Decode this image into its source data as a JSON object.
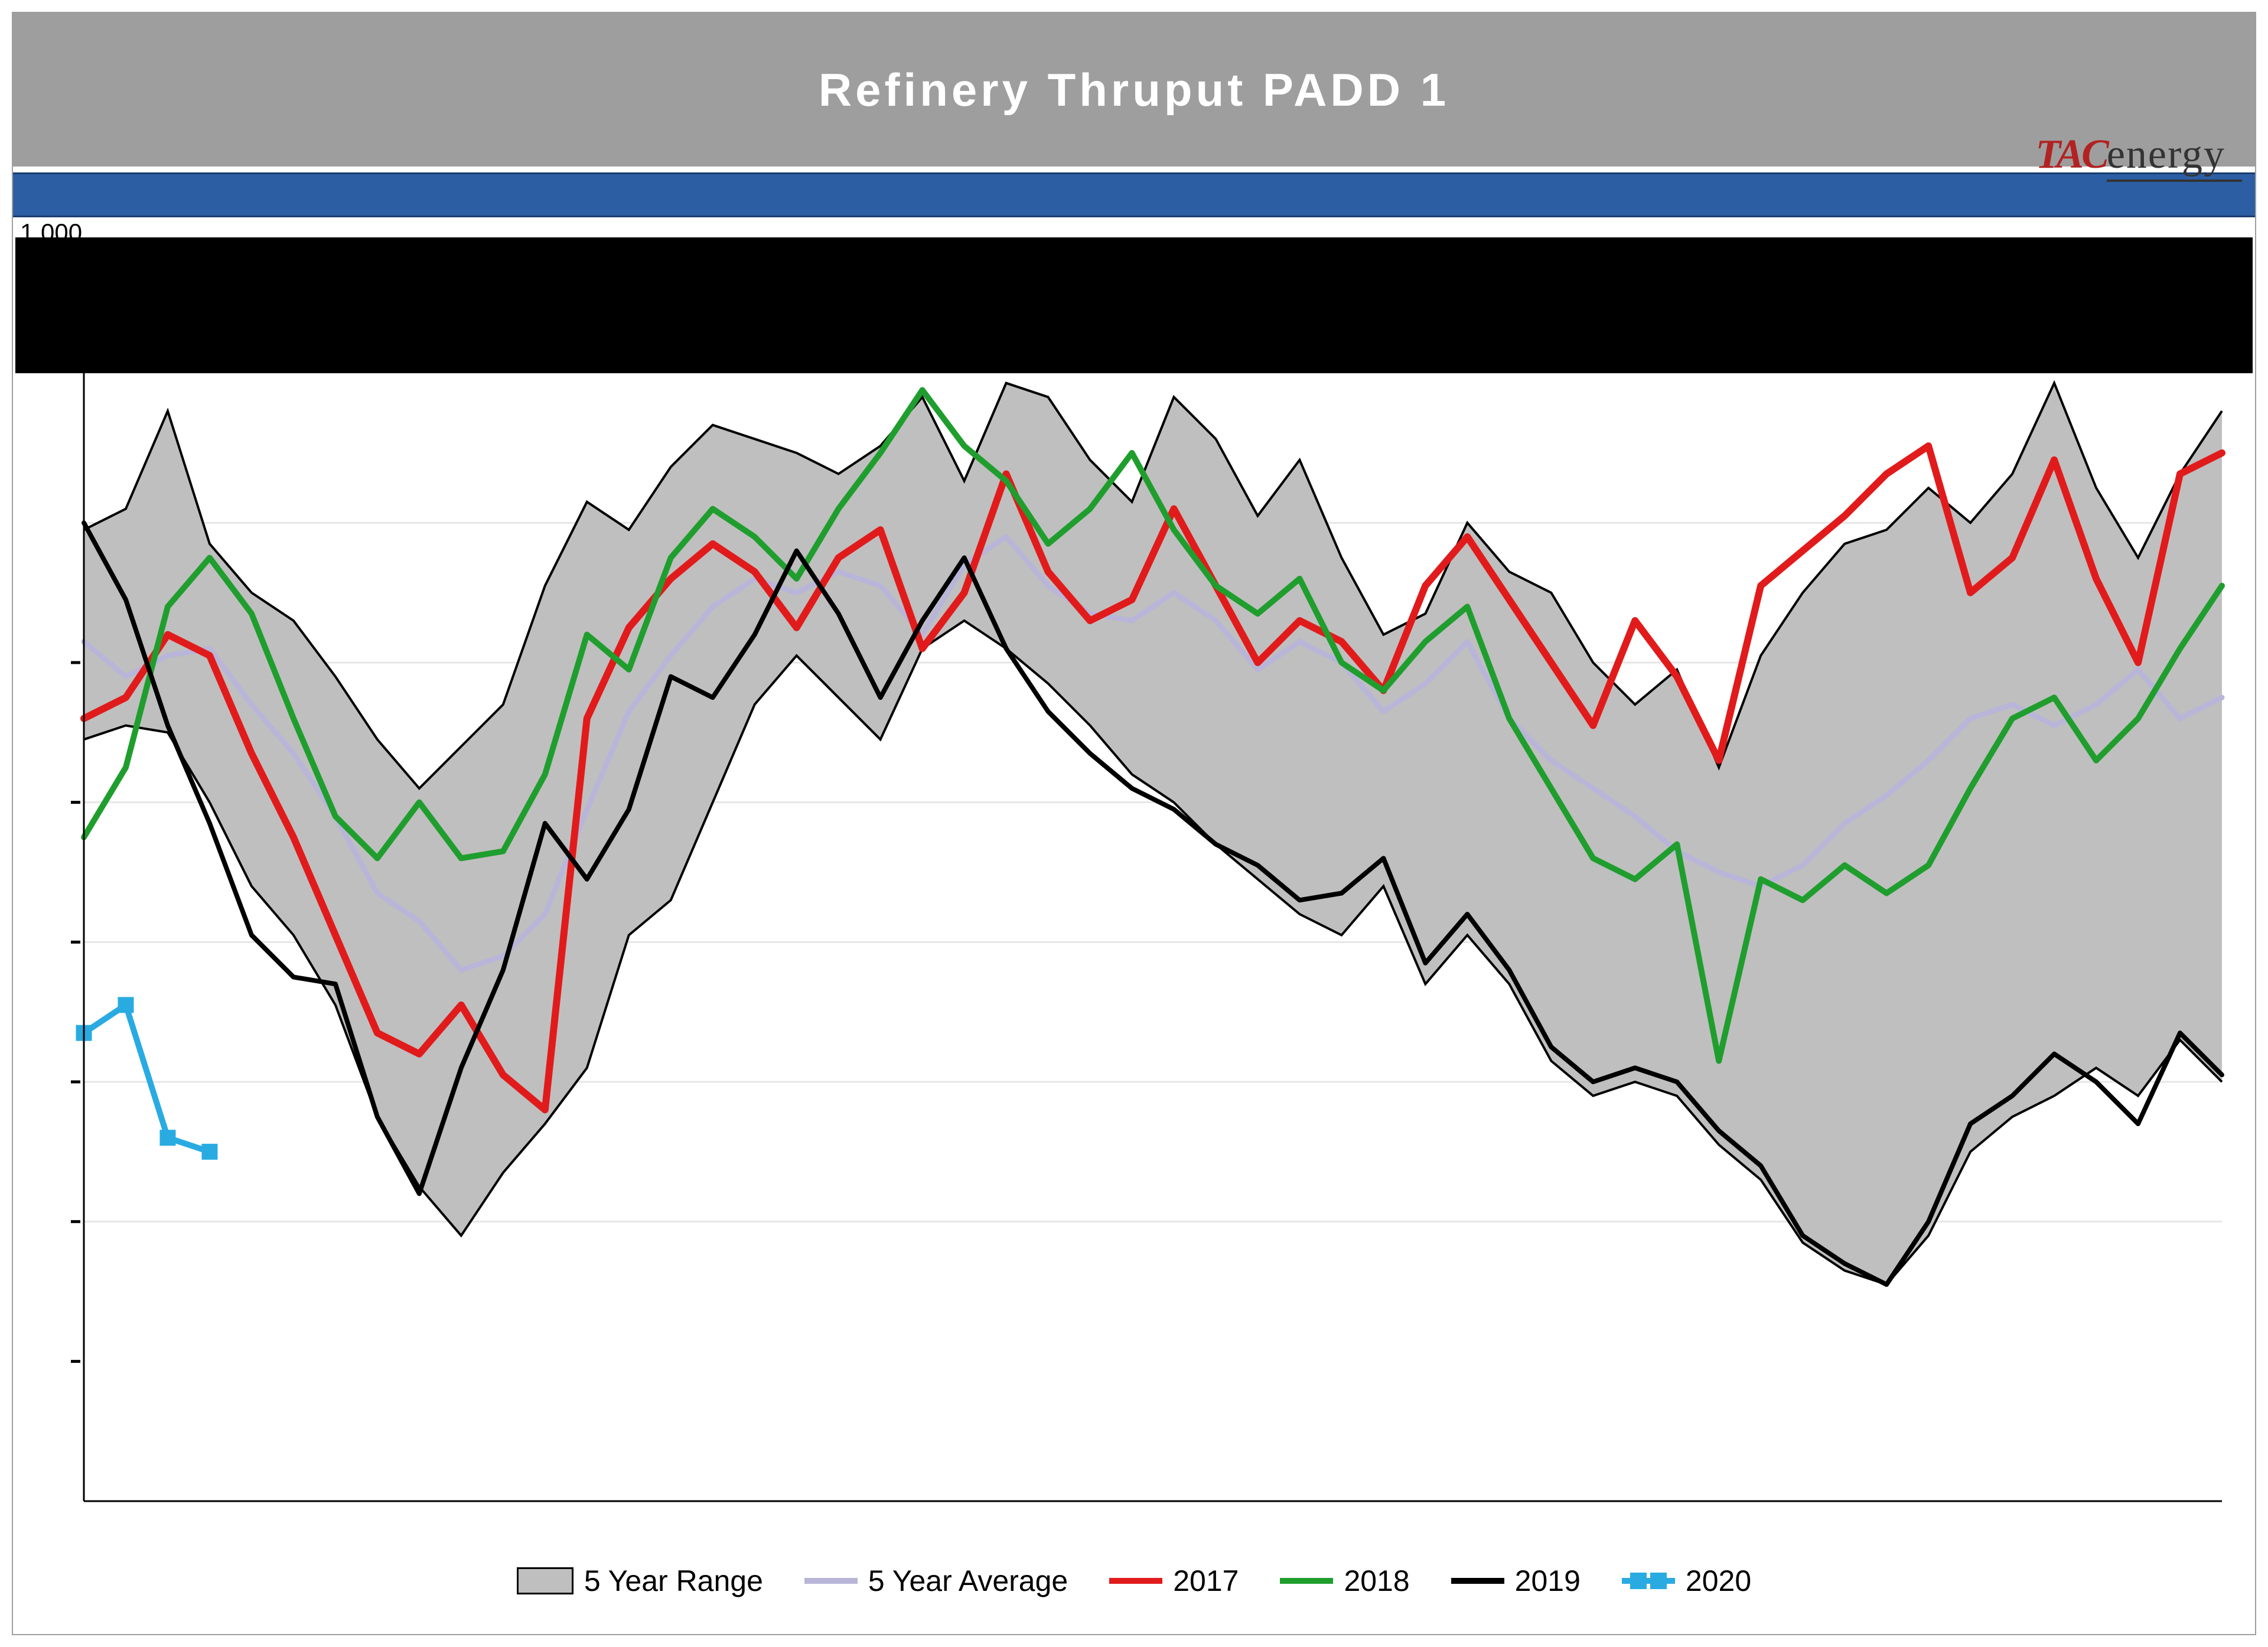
{
  "title": "Refinery Thruput PADD 1",
  "logo": {
    "tac": "TAC",
    "energy": "energy"
  },
  "axis_top_label": "1 000",
  "chart": {
    "type": "line-with-band",
    "x_count": 52,
    "y_domain": [
      500,
      1400
    ],
    "y_gridlines": [
      700,
      800,
      900,
      1000,
      1100,
      1200
    ],
    "y_tick_dash_positions": [
      600,
      700,
      800,
      900,
      1000,
      1100
    ],
    "plot_background": "#ffffff",
    "gridline_color": "#e6e6e6",
    "axis_line_color": "#000000",
    "band": {
      "label": "5 Year Range",
      "fill": "#bfbfbf",
      "stroke": "#000000",
      "stroke_width": 4,
      "upper": [
        1195,
        1210,
        1280,
        1185,
        1150,
        1130,
        1090,
        1045,
        1010,
        1040,
        1070,
        1155,
        1215,
        1195,
        1240,
        1270,
        1260,
        1250,
        1235,
        1255,
        1290,
        1230,
        1300,
        1290,
        1245,
        1215,
        1290,
        1260,
        1205,
        1245,
        1175,
        1120,
        1135,
        1200,
        1165,
        1150,
        1100,
        1070,
        1095,
        1025,
        1105,
        1150,
        1185,
        1195,
        1225,
        1200,
        1235,
        1300,
        1225,
        1175,
        1235,
        1280
      ],
      "lower": [
        1045,
        1055,
        1050,
        1000,
        940,
        905,
        855,
        775,
        725,
        690,
        735,
        770,
        810,
        905,
        930,
        1000,
        1070,
        1105,
        1075,
        1045,
        1110,
        1130,
        1110,
        1085,
        1055,
        1020,
        1000,
        970,
        945,
        920,
        905,
        940,
        870,
        905,
        870,
        815,
        790,
        800,
        790,
        755,
        730,
        685,
        665,
        655,
        690,
        750,
        775,
        790,
        810,
        790,
        830,
        800
      ]
    },
    "series": [
      {
        "id": "avg",
        "label": "5 Year Average",
        "color": "#b8b5d9",
        "width": 9,
        "marker": null,
        "values": [
          1115,
          1090,
          1105,
          1110,
          1070,
          1035,
          990,
          935,
          915,
          880,
          890,
          920,
          995,
          1065,
          1105,
          1140,
          1160,
          1150,
          1165,
          1155,
          1120,
          1170,
          1190,
          1155,
          1135,
          1130,
          1150,
          1130,
          1095,
          1115,
          1100,
          1065,
          1085,
          1115,
          1060,
          1030,
          1010,
          990,
          965,
          950,
          940,
          955,
          985,
          1005,
          1030,
          1060,
          1070,
          1055,
          1070,
          1095,
          1060,
          1075
        ]
      },
      {
        "id": "y2017",
        "label": "2017",
        "color": "#e11b1b",
        "width": 12,
        "marker": null,
        "values": [
          1060,
          1075,
          1120,
          1105,
          1035,
          975,
          905,
          835,
          820,
          855,
          805,
          780,
          1060,
          1125,
          1160,
          1185,
          1165,
          1125,
          1175,
          1195,
          1110,
          1150,
          1235,
          1165,
          1130,
          1145,
          1210,
          1155,
          1100,
          1130,
          1115,
          1080,
          1155,
          1190,
          1145,
          1100,
          1055,
          1130,
          1090,
          1030,
          1155,
          1180,
          1205,
          1235,
          1255,
          1150,
          1175,
          1245,
          1160,
          1100,
          1235,
          1250
        ]
      },
      {
        "id": "y2018",
        "label": "2018",
        "color": "#1f9e2e",
        "width": 10,
        "marker": null,
        "values": [
          975,
          1025,
          1140,
          1175,
          1135,
          1060,
          990,
          960,
          1000,
          960,
          965,
          1020,
          1120,
          1095,
          1175,
          1210,
          1190,
          1160,
          1210,
          1250,
          1295,
          1255,
          1230,
          1185,
          1210,
          1250,
          1195,
          1155,
          1135,
          1160,
          1100,
          1080,
          1115,
          1140,
          1060,
          1010,
          960,
          945,
          970,
          815,
          945,
          930,
          955,
          935,
          955,
          1010,
          1060,
          1075,
          1030,
          1060,
          1110,
          1155
        ]
      },
      {
        "id": "y2019",
        "label": "2019",
        "color": "#000000",
        "width": 8,
        "marker": null,
        "values": [
          1200,
          1145,
          1055,
          985,
          905,
          875,
          870,
          775,
          720,
          810,
          880,
          985,
          945,
          995,
          1090,
          1075,
          1120,
          1180,
          1135,
          1075,
          1130,
          1175,
          1110,
          1065,
          1035,
          1010,
          995,
          970,
          955,
          930,
          935,
          960,
          885,
          920,
          880,
          825,
          800,
          810,
          800,
          765,
          740,
          690,
          670,
          655,
          700,
          770,
          790,
          820,
          800,
          770,
          835,
          805
        ]
      },
      {
        "id": "y2020",
        "label": "2020",
        "color": "#29abe2",
        "width": 10,
        "marker": "square",
        "marker_size": 26,
        "values": [
          835,
          855,
          760,
          750
        ]
      }
    ],
    "legend": {
      "font_size": 50,
      "items": [
        "5 Year Range",
        "5 Year Average",
        "2017",
        "2018",
        "2019",
        "2020"
      ]
    }
  }
}
